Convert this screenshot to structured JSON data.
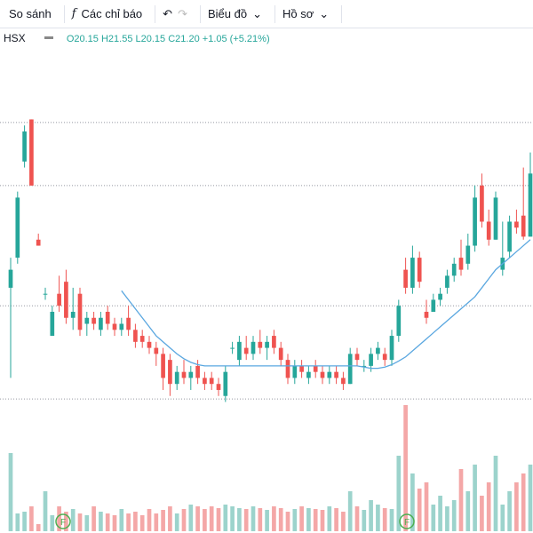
{
  "toolbar": {
    "compare": "So sánh",
    "indicators": "Các chỉ báo",
    "chart": "Biểu đồ",
    "profile": "Hồ sơ"
  },
  "legend": {
    "symbol": "HSX",
    "o": "O20.15",
    "h": "H21.55",
    "l": "L20.15",
    "c": "C21.20",
    "change": "+1.05 (+5.21%)"
  },
  "events": [
    {
      "label": "F"
    },
    {
      "label": "F"
    }
  ],
  "chart_data": {
    "type": "candlestick",
    "up_color": "#26a69a",
    "down_color": "#ef5350",
    "volume_up_color": "#9cd3cc",
    "volume_down_color": "#f4a7a7",
    "ma_color": "#5aa7e0",
    "ylim": [
      15.25,
      23.2
    ],
    "levels": [
      22.05,
      21.0,
      19.0,
      17.45
    ],
    "candles": [
      [
        19.3,
        19.8,
        17.8,
        19.6
      ],
      [
        19.8,
        20.9,
        19.7,
        20.8
      ],
      [
        21.4,
        22.0,
        21.3,
        21.9
      ],
      [
        22.1,
        22.1,
        21.0,
        21.0
      ],
      [
        20.1,
        20.2,
        20.0,
        20.0
      ],
      [
        19.2,
        19.3,
        19.1,
        19.2
      ],
      [
        18.5,
        19.0,
        18.5,
        18.9
      ],
      [
        19.2,
        19.5,
        18.9,
        19.0
      ],
      [
        19.4,
        19.6,
        18.7,
        18.8
      ],
      [
        18.8,
        19.3,
        18.6,
        18.9
      ],
      [
        19.2,
        19.3,
        18.5,
        18.6
      ],
      [
        18.7,
        18.9,
        18.5,
        18.8
      ],
      [
        18.8,
        18.9,
        18.6,
        18.7
      ],
      [
        18.6,
        18.9,
        18.5,
        18.8
      ],
      [
        18.9,
        19.0,
        18.6,
        18.7
      ],
      [
        18.7,
        18.8,
        18.5,
        18.6
      ],
      [
        18.6,
        18.8,
        18.5,
        18.7
      ],
      [
        18.8,
        19.0,
        18.5,
        18.6
      ],
      [
        18.6,
        18.7,
        18.3,
        18.4
      ],
      [
        18.5,
        18.6,
        18.3,
        18.4
      ],
      [
        18.4,
        18.5,
        18.2,
        18.3
      ],
      [
        18.3,
        18.4,
        18.0,
        18.2
      ],
      [
        18.2,
        18.3,
        17.6,
        17.8
      ],
      [
        18.1,
        18.2,
        17.5,
        17.7
      ],
      [
        17.7,
        18.0,
        17.6,
        17.9
      ],
      [
        17.9,
        18.1,
        17.7,
        17.8
      ],
      [
        17.8,
        18.0,
        17.6,
        17.9
      ],
      [
        18.0,
        18.1,
        17.7,
        17.8
      ],
      [
        17.8,
        17.9,
        17.6,
        17.7
      ],
      [
        17.8,
        17.9,
        17.6,
        17.7
      ],
      [
        17.7,
        17.8,
        17.5,
        17.6
      ],
      [
        17.5,
        18.0,
        17.4,
        17.9
      ],
      [
        18.3,
        18.4,
        18.2,
        18.3
      ],
      [
        18.1,
        18.5,
        18.0,
        18.4
      ],
      [
        18.3,
        18.5,
        18.1,
        18.2
      ],
      [
        18.2,
        18.5,
        18.1,
        18.4
      ],
      [
        18.4,
        18.6,
        18.2,
        18.3
      ],
      [
        18.3,
        18.5,
        18.1,
        18.4
      ],
      [
        18.5,
        18.6,
        18.2,
        18.3
      ],
      [
        18.3,
        18.4,
        18.0,
        18.1
      ],
      [
        18.1,
        18.2,
        17.7,
        17.8
      ],
      [
        17.8,
        18.1,
        17.7,
        18.0
      ],
      [
        18.0,
        18.1,
        17.8,
        17.9
      ],
      [
        17.8,
        18.0,
        17.7,
        17.9
      ],
      [
        18.0,
        18.1,
        17.8,
        17.9
      ],
      [
        17.9,
        18.0,
        17.7,
        17.8
      ],
      [
        17.8,
        18.0,
        17.7,
        17.9
      ],
      [
        17.9,
        18.0,
        17.7,
        17.8
      ],
      [
        17.8,
        17.9,
        17.6,
        17.7
      ],
      [
        17.7,
        18.3,
        17.7,
        18.2
      ],
      [
        18.2,
        18.3,
        18.0,
        18.1
      ],
      [
        18.0,
        18.1,
        17.9,
        18.0
      ],
      [
        18.0,
        18.3,
        17.9,
        18.2
      ],
      [
        18.2,
        18.4,
        18.1,
        18.3
      ],
      [
        18.2,
        18.3,
        18.0,
        18.1
      ],
      [
        18.1,
        18.6,
        18.0,
        18.5
      ],
      [
        18.5,
        19.1,
        18.4,
        19.0
      ],
      [
        19.6,
        19.8,
        19.2,
        19.3
      ],
      [
        19.3,
        20.0,
        19.2,
        19.8
      ],
      [
        19.8,
        19.9,
        19.3,
        19.4
      ],
      [
        18.9,
        19.1,
        18.7,
        18.8
      ],
      [
        18.9,
        19.2,
        18.9,
        19.1
      ],
      [
        19.1,
        19.3,
        19.0,
        19.2
      ],
      [
        19.3,
        19.6,
        19.2,
        19.5
      ],
      [
        19.5,
        19.8,
        19.4,
        19.7
      ],
      [
        19.8,
        20.1,
        19.5,
        19.6
      ],
      [
        19.7,
        20.2,
        19.6,
        20.0
      ],
      [
        20.0,
        21.0,
        19.9,
        20.8
      ],
      [
        21.0,
        21.2,
        20.3,
        20.4
      ],
      [
        20.4,
        20.6,
        20.0,
        20.1
      ],
      [
        20.1,
        20.9,
        20.1,
        20.8
      ],
      [
        19.6,
        20.4,
        19.5,
        19.8
      ],
      [
        19.9,
        20.5,
        19.8,
        20.4
      ],
      [
        20.4,
        20.6,
        20.2,
        20.3
      ],
      [
        20.5,
        21.3,
        20.1,
        20.15
      ],
      [
        20.15,
        21.55,
        20.15,
        21.2
      ]
    ],
    "ma": [
      null,
      null,
      null,
      null,
      null,
      null,
      null,
      null,
      null,
      null,
      null,
      null,
      null,
      null,
      null,
      null,
      19.25,
      19.1,
      18.95,
      18.8,
      18.65,
      18.5,
      18.4,
      18.3,
      18.2,
      18.12,
      18.06,
      18.02,
      18.0,
      18.0,
      18.0,
      18.0,
      18.0,
      18.0,
      18.0,
      18.0,
      18.0,
      18.0,
      18.0,
      18.0,
      18.0,
      18.0,
      18.0,
      18.0,
      18.0,
      18.0,
      18.0,
      18.0,
      18.0,
      18.0,
      18.0,
      17.98,
      17.96,
      17.96,
      17.98,
      18.02,
      18.08,
      18.15,
      18.25,
      18.35,
      18.45,
      18.55,
      18.65,
      18.75,
      18.85,
      18.95,
      19.05,
      19.15,
      19.3,
      19.45,
      19.6,
      19.7,
      19.8,
      19.9,
      20.0,
      20.1
    ],
    "volumes": [
      88,
      20,
      22,
      28,
      8,
      45,
      18,
      28,
      22,
      25,
      20,
      18,
      28,
      22,
      20,
      18,
      25,
      20,
      22,
      18,
      25,
      20,
      24,
      28,
      20,
      25,
      30,
      28,
      25,
      28,
      26,
      30,
      28,
      26,
      25,
      28,
      26,
      24,
      28,
      26,
      22,
      25,
      28,
      26,
      25,
      24,
      28,
      26,
      22,
      45,
      28,
      24,
      35,
      30,
      26,
      25,
      85,
      142,
      65,
      48,
      55,
      30,
      40,
      28,
      35,
      70,
      45,
      75,
      40,
      55,
      85,
      30,
      45,
      55,
      65,
      75
    ],
    "volume_max": 150
  }
}
